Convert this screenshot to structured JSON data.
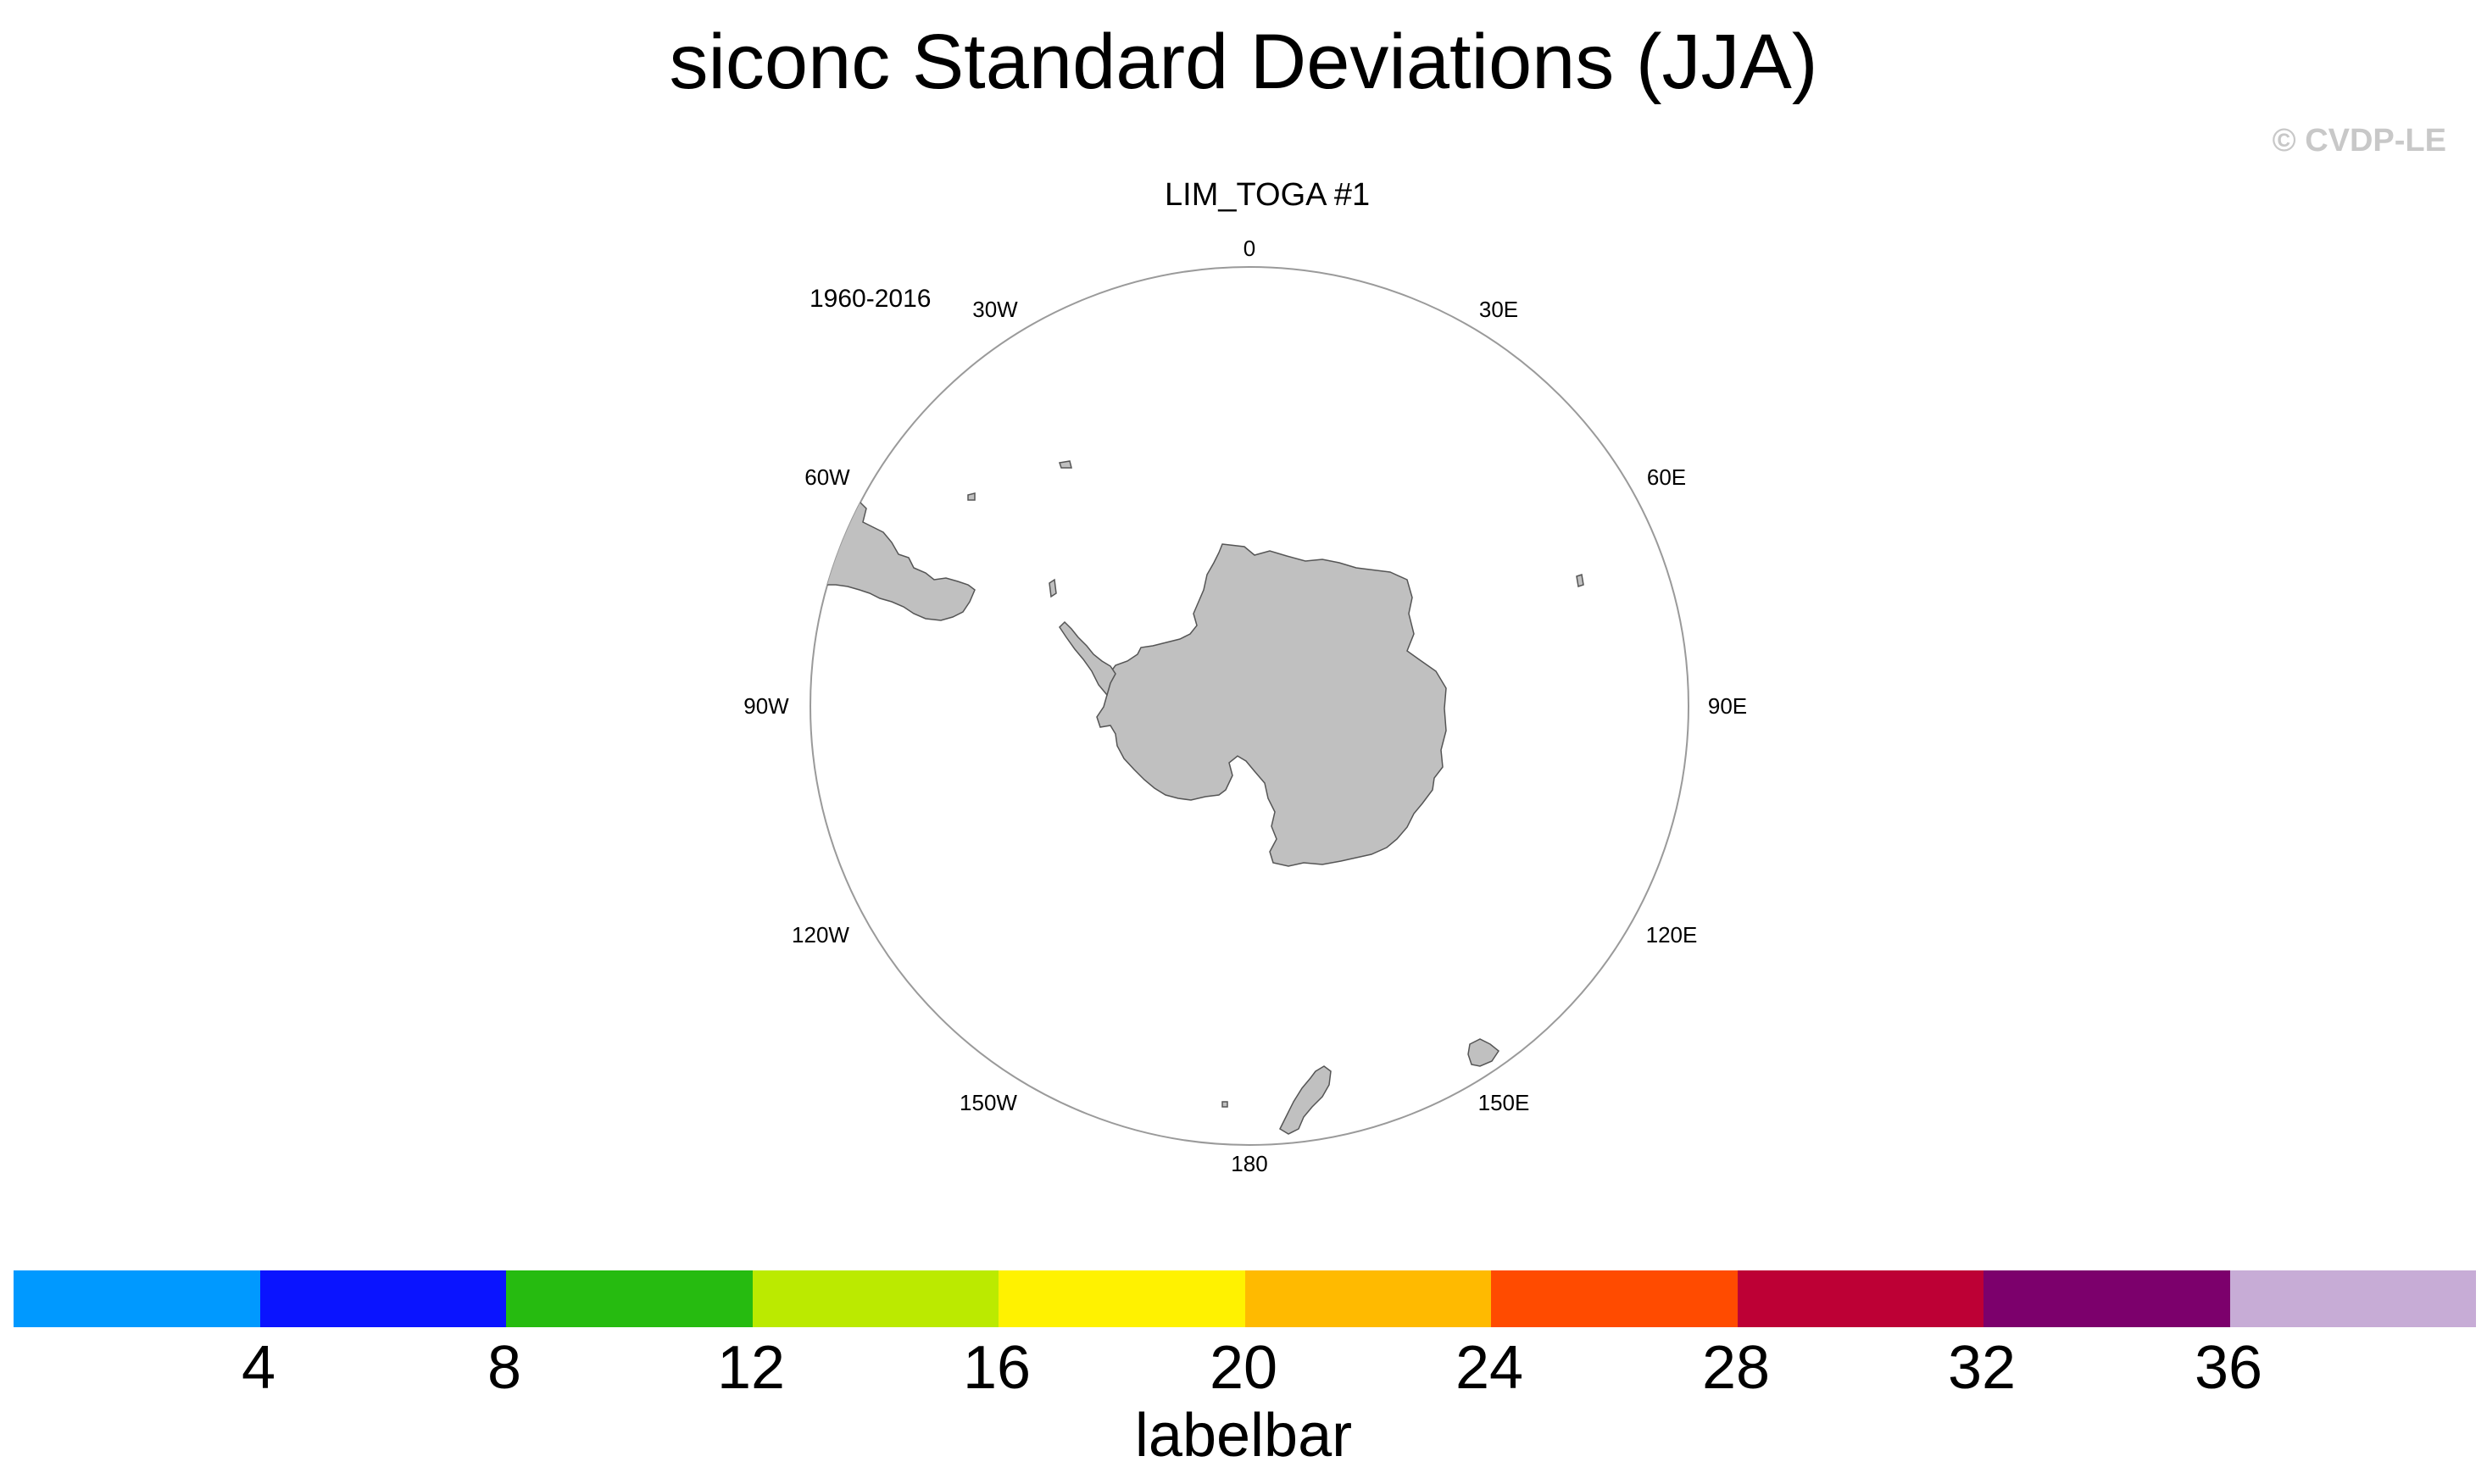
{
  "figure": {
    "title": "siconc Standard Deviations (JJA)",
    "copyright": "© CVDP-LE"
  },
  "panel": {
    "title": "LIM_TOGA #1",
    "period": "1960-2016",
    "projection": "south-polar-stereographic",
    "land_color": "#c0c0c0",
    "frame_color": "#9a9a9a",
    "longitude_labels": [
      "0",
      "30E",
      "60E",
      "90E",
      "120E",
      "150E",
      "180",
      "150W",
      "120W",
      "90W",
      "60W",
      "30W"
    ]
  },
  "colorbar": {
    "title": "labelbar",
    "ticks": [
      "4",
      "8",
      "12",
      "16",
      "20",
      "24",
      "28",
      "32",
      "36"
    ],
    "colors": [
      "#0099ff",
      "#0a14ff",
      "#26bb10",
      "#bbea00",
      "#fff200",
      "#ffba00",
      "#ff4b00",
      "#bd0035",
      "#7c006c",
      "#c7acd6"
    ]
  }
}
